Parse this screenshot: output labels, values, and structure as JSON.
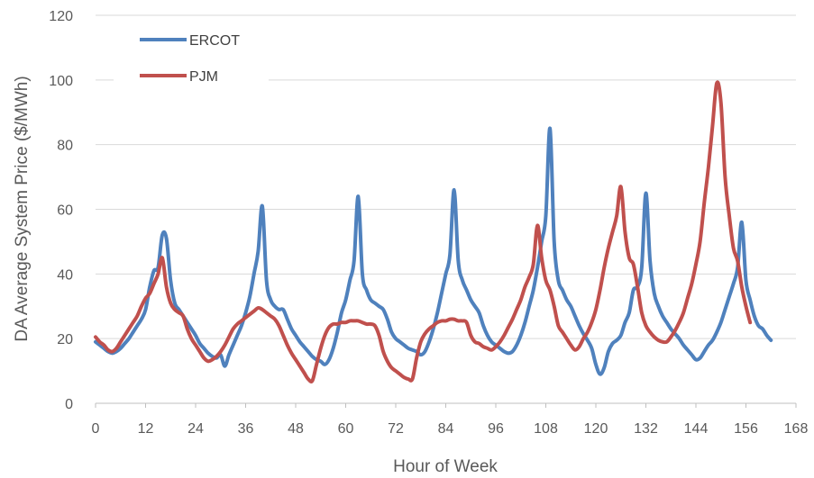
{
  "chart_data": {
    "type": "line",
    "title": "",
    "xlabel": "Hour of Week",
    "ylabel": "DA Average System Price ($/MWh)",
    "xlim": [
      0,
      168
    ],
    "ylim": [
      0,
      120
    ],
    "xticks": [
      "0",
      "12",
      "24",
      "36",
      "48",
      "60",
      "72",
      "84",
      "96",
      "108",
      "120",
      "132",
      "144",
      "156",
      "168"
    ],
    "yticks": [
      "0",
      "20",
      "40",
      "60",
      "80",
      "100",
      "120"
    ],
    "grid": "horizontal",
    "legend_position": "top-left",
    "series": [
      {
        "name": "ERCOT",
        "color": "#4F81BD",
        "points": [
          [
            0,
            19
          ],
          [
            1,
            18
          ],
          [
            2,
            17
          ],
          [
            3,
            16
          ],
          [
            4,
            15.5
          ],
          [
            5,
            16
          ],
          [
            6,
            17
          ],
          [
            7,
            18.5
          ],
          [
            8,
            20
          ],
          [
            9,
            22
          ],
          [
            10,
            24
          ],
          [
            11,
            26
          ],
          [
            12,
            29
          ],
          [
            13,
            36
          ],
          [
            14,
            41
          ],
          [
            15,
            42
          ],
          [
            16,
            52
          ],
          [
            17,
            51
          ],
          [
            18,
            38
          ],
          [
            19,
            31
          ],
          [
            20,
            29
          ],
          [
            21,
            27
          ],
          [
            22,
            25
          ],
          [
            23,
            23
          ],
          [
            24,
            21
          ],
          [
            25,
            18.5
          ],
          [
            26,
            17
          ],
          [
            27,
            15.5
          ],
          [
            28,
            14.5
          ],
          [
            29,
            14
          ],
          [
            30,
            15
          ],
          [
            31,
            11.5
          ],
          [
            32,
            15
          ],
          [
            33,
            18
          ],
          [
            34,
            21
          ],
          [
            35,
            24
          ],
          [
            36,
            28
          ],
          [
            37,
            33
          ],
          [
            38,
            40
          ],
          [
            39,
            47
          ],
          [
            40,
            61
          ],
          [
            41,
            38
          ],
          [
            42,
            32
          ],
          [
            43,
            30
          ],
          [
            44,
            29
          ],
          [
            45,
            29
          ],
          [
            46,
            26
          ],
          [
            47,
            23
          ],
          [
            48,
            21
          ],
          [
            49,
            19
          ],
          [
            50,
            17.5
          ],
          [
            51,
            16
          ],
          [
            52,
            14.5
          ],
          [
            53,
            13.5
          ],
          [
            54,
            13
          ],
          [
            55,
            12
          ],
          [
            56,
            13.5
          ],
          [
            57,
            17
          ],
          [
            58,
            22
          ],
          [
            59,
            28
          ],
          [
            60,
            32
          ],
          [
            61,
            38
          ],
          [
            62,
            44
          ],
          [
            63,
            64
          ],
          [
            64,
            40
          ],
          [
            65,
            35
          ],
          [
            66,
            32
          ],
          [
            67,
            31
          ],
          [
            68,
            30
          ],
          [
            69,
            29
          ],
          [
            70,
            26
          ],
          [
            71,
            22
          ],
          [
            72,
            20
          ],
          [
            73,
            19
          ],
          [
            74,
            18
          ],
          [
            75,
            17
          ],
          [
            76,
            16.5
          ],
          [
            77,
            16
          ],
          [
            78,
            15
          ],
          [
            79,
            16
          ],
          [
            80,
            19
          ],
          [
            81,
            23
          ],
          [
            82,
            28
          ],
          [
            83,
            34
          ],
          [
            84,
            40
          ],
          [
            85,
            46
          ],
          [
            86,
            66
          ],
          [
            87,
            44
          ],
          [
            88,
            38
          ],
          [
            89,
            35
          ],
          [
            90,
            32
          ],
          [
            91,
            30
          ],
          [
            92,
            28
          ],
          [
            93,
            24
          ],
          [
            94,
            21
          ],
          [
            95,
            19
          ],
          [
            96,
            18
          ],
          [
            97,
            17
          ],
          [
            98,
            16
          ],
          [
            99,
            15.5
          ],
          [
            100,
            16
          ],
          [
            101,
            18
          ],
          [
            102,
            21
          ],
          [
            103,
            25
          ],
          [
            104,
            30
          ],
          [
            105,
            35
          ],
          [
            106,
            42
          ],
          [
            107,
            50
          ],
          [
            108,
            58
          ],
          [
            109,
            85
          ],
          [
            110,
            50
          ],
          [
            111,
            38
          ],
          [
            112,
            35
          ],
          [
            113,
            32
          ],
          [
            114,
            30
          ],
          [
            115,
            27
          ],
          [
            116,
            24
          ],
          [
            117,
            21.5
          ],
          [
            118,
            19.5
          ],
          [
            119,
            17
          ],
          [
            120,
            12
          ],
          [
            121,
            9
          ],
          [
            122,
            11
          ],
          [
            123,
            16
          ],
          [
            124,
            18.5
          ],
          [
            125,
            19.5
          ],
          [
            126,
            21
          ],
          [
            127,
            25
          ],
          [
            128,
            28
          ],
          [
            129,
            35
          ],
          [
            130,
            36
          ],
          [
            131,
            42
          ],
          [
            132,
            65
          ],
          [
            133,
            44
          ],
          [
            134,
            34
          ],
          [
            135,
            30
          ],
          [
            136,
            27
          ],
          [
            137,
            25
          ],
          [
            138,
            23
          ],
          [
            139,
            21.5
          ],
          [
            140,
            20
          ],
          [
            141,
            18
          ],
          [
            142,
            16.5
          ],
          [
            143,
            15
          ],
          [
            144,
            13.5
          ],
          [
            145,
            14
          ],
          [
            146,
            16
          ],
          [
            147,
            18
          ],
          [
            148,
            19.5
          ],
          [
            149,
            22
          ],
          [
            150,
            25
          ],
          [
            151,
            29
          ],
          [
            152,
            33
          ],
          [
            153,
            37
          ],
          [
            154,
            42
          ],
          [
            155,
            56
          ],
          [
            156,
            38
          ],
          [
            157,
            32
          ],
          [
            158,
            27
          ],
          [
            159,
            24
          ],
          [
            160,
            23
          ],
          [
            161,
            21
          ],
          [
            162,
            19.5
          ]
        ]
      },
      {
        "name": "PJM",
        "color": "#C0504D",
        "points": [
          [
            0,
            20.5
          ],
          [
            1,
            19
          ],
          [
            2,
            18
          ],
          [
            3,
            16.5
          ],
          [
            4,
            16
          ],
          [
            5,
            17
          ],
          [
            6,
            19
          ],
          [
            7,
            21
          ],
          [
            8,
            23
          ],
          [
            9,
            25
          ],
          [
            10,
            27
          ],
          [
            11,
            30
          ],
          [
            12,
            32.5
          ],
          [
            13,
            34
          ],
          [
            14,
            37
          ],
          [
            15,
            40
          ],
          [
            16,
            45
          ],
          [
            17,
            36
          ],
          [
            18,
            31
          ],
          [
            19,
            29
          ],
          [
            20,
            28
          ],
          [
            21,
            27
          ],
          [
            22,
            23
          ],
          [
            23,
            20
          ],
          [
            24,
            18
          ],
          [
            25,
            16
          ],
          [
            26,
            14
          ],
          [
            27,
            13
          ],
          [
            28,
            13.5
          ],
          [
            29,
            14.5
          ],
          [
            30,
            16
          ],
          [
            31,
            18
          ],
          [
            32,
            20.5
          ],
          [
            33,
            23
          ],
          [
            34,
            24.5
          ],
          [
            35,
            25.5
          ],
          [
            36,
            26.5
          ],
          [
            37,
            27.5
          ],
          [
            38,
            28.5
          ],
          [
            39,
            29.5
          ],
          [
            40,
            29
          ],
          [
            41,
            28
          ],
          [
            42,
            27
          ],
          [
            43,
            26
          ],
          [
            44,
            24
          ],
          [
            45,
            21
          ],
          [
            46,
            18
          ],
          [
            47,
            15.5
          ],
          [
            48,
            13.5
          ],
          [
            49,
            11.5
          ],
          [
            50,
            9.5
          ],
          [
            51,
            7.5
          ],
          [
            52,
            7
          ],
          [
            53,
            12
          ],
          [
            54,
            17
          ],
          [
            55,
            21
          ],
          [
            56,
            23.5
          ],
          [
            57,
            24.5
          ],
          [
            58,
            24.5
          ],
          [
            59,
            25
          ],
          [
            60,
            25
          ],
          [
            61,
            25.5
          ],
          [
            62,
            25.5
          ],
          [
            63,
            25.5
          ],
          [
            64,
            25
          ],
          [
            65,
            24.5
          ],
          [
            66,
            24.5
          ],
          [
            67,
            24
          ],
          [
            68,
            21
          ],
          [
            69,
            16
          ],
          [
            70,
            13
          ],
          [
            71,
            11
          ],
          [
            72,
            10
          ],
          [
            73,
            9
          ],
          [
            74,
            8
          ],
          [
            75,
            7.5
          ],
          [
            76,
            7.5
          ],
          [
            77,
            14
          ],
          [
            78,
            19
          ],
          [
            79,
            21.5
          ],
          [
            80,
            23
          ],
          [
            81,
            24
          ],
          [
            82,
            25
          ],
          [
            83,
            25.5
          ],
          [
            84,
            25.5
          ],
          [
            85,
            26
          ],
          [
            86,
            26
          ],
          [
            87,
            25.5
          ],
          [
            88,
            25.5
          ],
          [
            89,
            25
          ],
          [
            90,
            21
          ],
          [
            91,
            19
          ],
          [
            92,
            18.5
          ],
          [
            93,
            17.5
          ],
          [
            94,
            17
          ],
          [
            95,
            16.5
          ],
          [
            96,
            17.5
          ],
          [
            97,
            19
          ],
          [
            98,
            21
          ],
          [
            99,
            23.5
          ],
          [
            100,
            26
          ],
          [
            101,
            29
          ],
          [
            102,
            32
          ],
          [
            103,
            36
          ],
          [
            104,
            39
          ],
          [
            105,
            43
          ],
          [
            106,
            55
          ],
          [
            107,
            45
          ],
          [
            108,
            38
          ],
          [
            109,
            35
          ],
          [
            110,
            30
          ],
          [
            111,
            24
          ],
          [
            112,
            22
          ],
          [
            113,
            20
          ],
          [
            114,
            18
          ],
          [
            115,
            16.5
          ],
          [
            116,
            17.5
          ],
          [
            117,
            20
          ],
          [
            118,
            22
          ],
          [
            119,
            25
          ],
          [
            120,
            29
          ],
          [
            121,
            35
          ],
          [
            122,
            42
          ],
          [
            123,
            48
          ],
          [
            124,
            53
          ],
          [
            125,
            58
          ],
          [
            126,
            67
          ],
          [
            127,
            53
          ],
          [
            128,
            45
          ],
          [
            129,
            43
          ],
          [
            130,
            36
          ],
          [
            131,
            28
          ],
          [
            132,
            24
          ],
          [
            133,
            22
          ],
          [
            134,
            20.5
          ],
          [
            135,
            19.5
          ],
          [
            136,
            19
          ],
          [
            137,
            19
          ],
          [
            138,
            20.5
          ],
          [
            139,
            22.5
          ],
          [
            140,
            25
          ],
          [
            141,
            28
          ],
          [
            142,
            32.5
          ],
          [
            143,
            37
          ],
          [
            144,
            43
          ],
          [
            145,
            50
          ],
          [
            146,
            62
          ],
          [
            147,
            73
          ],
          [
            148,
            86
          ],
          [
            149,
            99
          ],
          [
            150,
            93
          ],
          [
            151,
            70
          ],
          [
            152,
            58
          ],
          [
            153,
            48
          ],
          [
            154,
            44
          ],
          [
            155,
            36
          ],
          [
            156,
            30
          ],
          [
            157,
            25
          ]
        ]
      }
    ]
  }
}
